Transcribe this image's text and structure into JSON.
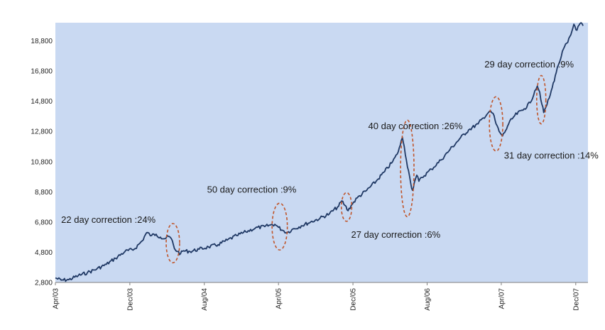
{
  "colors": {
    "plot_background": "#c9d9f2",
    "series_line": "#1f3864",
    "annotation_ellipse": "#c0552a",
    "page_background": "#ffffff"
  },
  "chart_data": {
    "type": "line",
    "title": "",
    "xlabel": "",
    "ylabel": "",
    "ylim": [
      2800,
      20000
    ],
    "grid": false,
    "legend": "none",
    "y_ticks": [
      "2,800",
      "4,800",
      "6,800",
      "8,800",
      "10,800",
      "12,800",
      "14,800",
      "16,800",
      "18,800"
    ],
    "x_ticks": [
      {
        "label": "Apr/03",
        "date": "2003-04-01"
      },
      {
        "label": "Dec/03",
        "date": "2003-12-01"
      },
      {
        "label": "Aug/04",
        "date": "2004-08-01"
      },
      {
        "label": "Apr/05",
        "date": "2005-04-01"
      },
      {
        "label": "Dec/05",
        "date": "2005-12-01"
      },
      {
        "label": "Aug/06",
        "date": "2006-08-01"
      },
      {
        "label": "Apr/07",
        "date": "2007-04-01"
      },
      {
        "label": "Dec/07",
        "date": "2007-12-01"
      }
    ],
    "series": [
      {
        "points": [
          [
            "2003-04-01",
            3100
          ],
          [
            "2003-04-20",
            2950
          ],
          [
            "2003-05-15",
            2980
          ],
          [
            "2003-06-15",
            3250
          ],
          [
            "2003-07-15",
            3450
          ],
          [
            "2003-08-15",
            3700
          ],
          [
            "2003-09-15",
            4000
          ],
          [
            "2003-10-15",
            4400
          ],
          [
            "2003-11-15",
            4850
          ],
          [
            "2003-12-15",
            5000
          ],
          [
            "2004-01-10",
            5550
          ],
          [
            "2004-01-25",
            6100
          ],
          [
            "2004-02-10",
            5900
          ],
          [
            "2004-02-25",
            6000
          ],
          [
            "2004-03-10",
            5800
          ],
          [
            "2004-03-25",
            5700
          ],
          [
            "2004-04-05",
            5850
          ],
          [
            "2004-04-15",
            5700
          ],
          [
            "2004-04-25",
            5050
          ],
          [
            "2004-05-05",
            4850
          ],
          [
            "2004-05-15",
            4700
          ],
          [
            "2004-05-25",
            4900
          ],
          [
            "2004-06-15",
            4850
          ],
          [
            "2004-07-15",
            5000
          ],
          [
            "2004-08-15",
            5150
          ],
          [
            "2004-09-15",
            5300
          ],
          [
            "2004-10-15",
            5600
          ],
          [
            "2004-11-15",
            5900
          ],
          [
            "2004-12-15",
            6150
          ],
          [
            "2005-01-15",
            6400
          ],
          [
            "2005-02-15",
            6500
          ],
          [
            "2005-03-05",
            6600
          ],
          [
            "2005-03-20",
            6650
          ],
          [
            "2005-04-01",
            6450
          ],
          [
            "2005-04-15",
            6250
          ],
          [
            "2005-04-30",
            6100
          ],
          [
            "2005-05-15",
            6300
          ],
          [
            "2005-06-15",
            6550
          ],
          [
            "2005-07-15",
            6800
          ],
          [
            "2005-08-15",
            7050
          ],
          [
            "2005-09-15",
            7350
          ],
          [
            "2005-10-15",
            7850
          ],
          [
            "2005-10-25",
            8200
          ],
          [
            "2005-11-05",
            7900
          ],
          [
            "2005-11-15",
            7550
          ],
          [
            "2005-11-25",
            7900
          ],
          [
            "2005-12-15",
            8400
          ],
          [
            "2006-01-15",
            8900
          ],
          [
            "2006-02-15",
            9500
          ],
          [
            "2006-03-15",
            10150
          ],
          [
            "2006-04-10",
            10800
          ],
          [
            "2006-04-25",
            11300
          ],
          [
            "2006-05-05",
            11900
          ],
          [
            "2006-05-12",
            12400
          ],
          [
            "2006-05-18",
            11800
          ],
          [
            "2006-05-25",
            10900
          ],
          [
            "2006-06-01",
            10200
          ],
          [
            "2006-06-08",
            9400
          ],
          [
            "2006-06-14",
            8900
          ],
          [
            "2006-06-20",
            9400
          ],
          [
            "2006-06-28",
            9900
          ],
          [
            "2006-07-05",
            9500
          ],
          [
            "2006-07-15",
            9750
          ],
          [
            "2006-08-15",
            10300
          ],
          [
            "2006-09-15",
            10900
          ],
          [
            "2006-10-15",
            11600
          ],
          [
            "2006-11-15",
            12300
          ],
          [
            "2006-12-15",
            12900
          ],
          [
            "2007-01-15",
            13300
          ],
          [
            "2007-02-01",
            13700
          ],
          [
            "2007-02-20",
            14100
          ],
          [
            "2007-03-05",
            14000
          ],
          [
            "2007-03-15",
            13300
          ],
          [
            "2007-03-25",
            12800
          ],
          [
            "2007-04-05",
            12500
          ],
          [
            "2007-04-15",
            12850
          ],
          [
            "2007-04-25",
            13300
          ],
          [
            "2007-05-15",
            13850
          ],
          [
            "2007-06-15",
            14300
          ],
          [
            "2007-07-05",
            14700
          ],
          [
            "2007-07-20",
            15500
          ],
          [
            "2007-07-28",
            15800
          ],
          [
            "2007-08-05",
            15400
          ],
          [
            "2007-08-12",
            14600
          ],
          [
            "2007-08-18",
            14050
          ],
          [
            "2007-08-25",
            14400
          ],
          [
            "2007-09-05",
            15000
          ],
          [
            "2007-09-15",
            15700
          ],
          [
            "2007-09-25",
            16500
          ],
          [
            "2007-10-05",
            17200
          ],
          [
            "2007-10-15",
            17800
          ],
          [
            "2007-10-25",
            18400
          ],
          [
            "2007-11-05",
            18700
          ],
          [
            "2007-11-15",
            19200
          ],
          [
            "2007-11-25",
            19900
          ],
          [
            "2007-12-05",
            19500
          ],
          [
            "2007-12-15",
            19950
          ],
          [
            "2007-12-25",
            19800
          ]
        ]
      }
    ],
    "annotations": [
      {
        "text": "22 day correction :24%",
        "center": [
          "2004-04-20",
          5400
        ],
        "rx_days": 22,
        "ry_value": 1300,
        "text_at": [
          "2003-04-20",
          6750
        ]
      },
      {
        "text": "50 day correction :9%",
        "center": [
          "2005-04-05",
          6500
        ],
        "rx_days": 25,
        "ry_value": 1550,
        "text_at": [
          "2004-08-10",
          8750
        ]
      },
      {
        "text": "27 day correction :6%",
        "center": [
          "2005-11-10",
          7800
        ],
        "rx_days": 17,
        "ry_value": 950,
        "text_at": [
          "2005-11-25",
          5750
        ]
      },
      {
        "text": "40 day correction :26%",
        "center": [
          "2006-05-28",
          10350
        ],
        "rx_days": 22,
        "ry_value": 3200,
        "text_at": [
          "2006-01-20",
          12950
        ]
      },
      {
        "text": "31 day correction :14%",
        "center": [
          "2007-03-15",
          13300
        ],
        "rx_days": 22,
        "ry_value": 1800,
        "text_at": [
          "2007-04-10",
          11000
        ]
      },
      {
        "text": "29 day correction :9%",
        "center": [
          "2007-08-10",
          14900
        ],
        "rx_days": 15,
        "ry_value": 1600,
        "text_at": [
          "2007-02-05",
          17050
        ]
      }
    ]
  }
}
